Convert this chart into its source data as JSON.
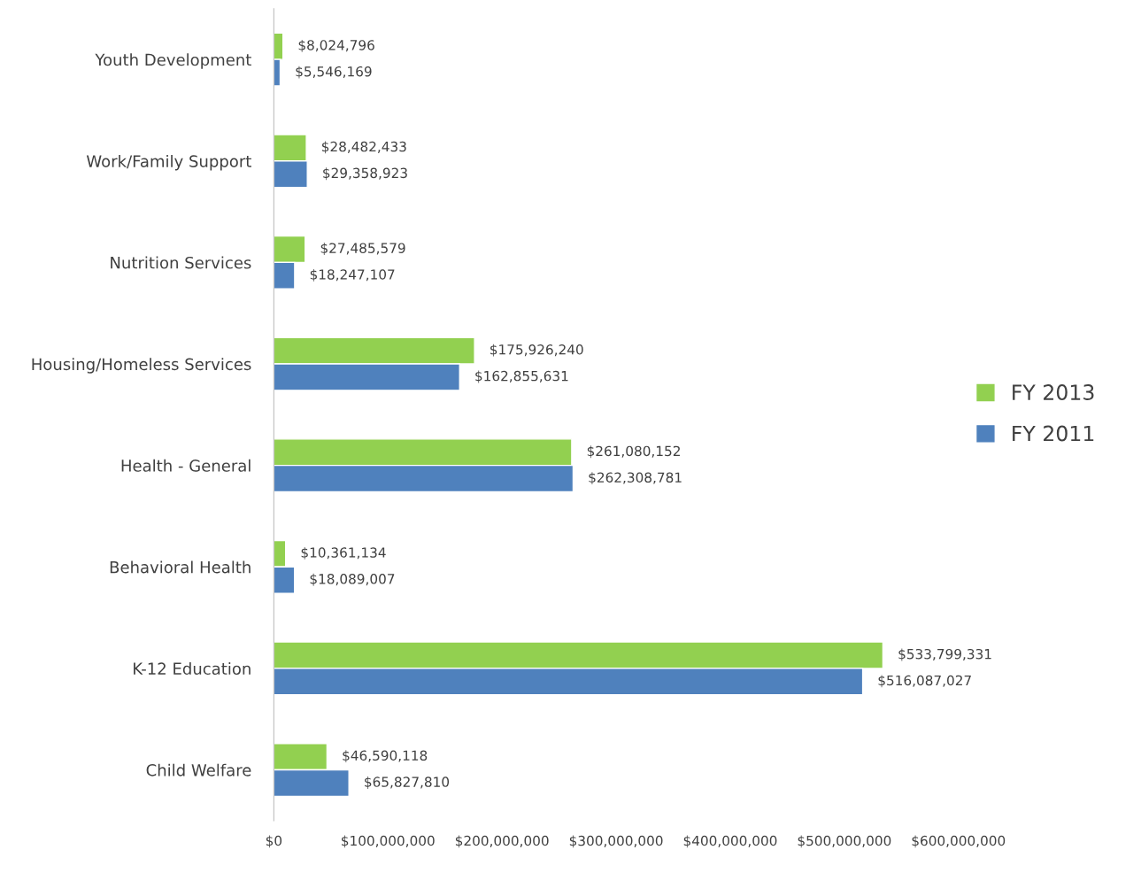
{
  "chart_data": {
    "type": "bar",
    "orientation": "horizontal",
    "categories": [
      "Youth Development",
      "Work/Family Support",
      "Nutrition Services",
      "Housing/Homeless Services",
      "Health - General",
      "Behavioral Health",
      "K-12 Education",
      "Child Welfare"
    ],
    "series": [
      {
        "name": "FY 2013",
        "color": "#92d050",
        "values": [
          8024796,
          28482433,
          27485579,
          175926240,
          261080152,
          10361134,
          533799331,
          46590118
        ],
        "value_labels": [
          "$8,024,796",
          "$28,482,433",
          "$27,485,579",
          "$175,926,240",
          "$261,080,152",
          "$10,361,134",
          "$533,799,331",
          "$46,590,118"
        ]
      },
      {
        "name": "FY 2011",
        "color": "#4f81bd",
        "values": [
          5546169,
          29358923,
          18247107,
          162855631,
          262308781,
          18089007,
          516087027,
          65827810
        ],
        "value_labels": [
          "$5,546,169",
          "$29,358,923",
          "$18,247,107",
          "$162,855,631",
          "$262,308,781",
          "$18,089,007",
          "$516,087,027",
          "$65,827,810"
        ]
      }
    ],
    "xlim": [
      0,
      600000000
    ],
    "xticks": [
      {
        "value": 0,
        "label": "$0"
      },
      {
        "value": 100000000,
        "label": "$100,000,000"
      },
      {
        "value": 200000000,
        "label": "$200,000,000"
      },
      {
        "value": 300000000,
        "label": "$300,000,000"
      },
      {
        "value": 400000000,
        "label": "$400,000,000"
      },
      {
        "value": 500000000,
        "label": "$500,000,000"
      },
      {
        "value": 600000000,
        "label": "$600,000,000"
      }
    ],
    "grid": false,
    "legend": "right"
  }
}
